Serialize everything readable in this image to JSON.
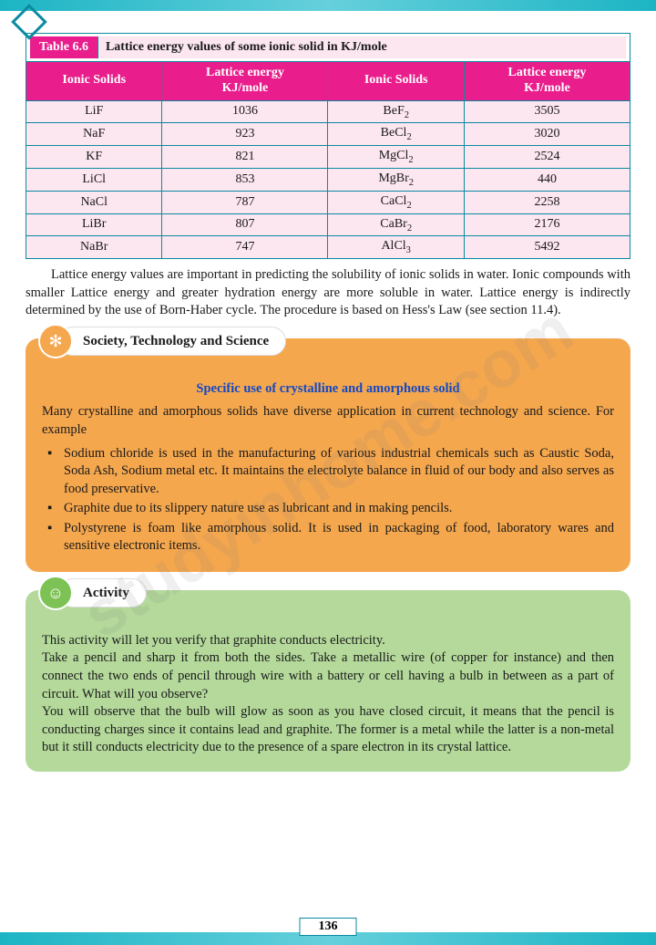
{
  "watermark": "studyinhome.com",
  "page_number": "136",
  "table": {
    "number": "Table 6.6",
    "caption": "Lattice energy values of some ionic solid in KJ/mole",
    "headers": {
      "0": "Ionic Solids",
      "1a": "Lattice energy",
      "1b": "KJ/mole",
      "2": "Ionic Solids",
      "3a": "Lattice energy",
      "3b": "KJ/mole"
    },
    "rows": [
      [
        "LiF",
        "1036",
        "BeF2",
        "3505"
      ],
      [
        "NaF",
        "923",
        "BeCl2",
        "3020"
      ],
      [
        "KF",
        "821",
        "MgCl2",
        "2524"
      ],
      [
        "LiCl",
        "853",
        "MgBr2",
        "440"
      ],
      [
        "NaCl",
        "787",
        "CaCl2",
        "2258"
      ],
      [
        "LiBr",
        "807",
        "CaBr2",
        "2176"
      ],
      [
        "NaBr",
        "747",
        "AlCl3",
        "5492"
      ]
    ],
    "header_bg": "#e91e8c",
    "header_fg": "#ffffff",
    "cell_bg": "#fce6ef",
    "border_color": "#0a8aa0"
  },
  "paragraph": "Lattice energy values are important in predicting the solubility of ionic solids in water. Ionic compounds with smaller Lattice energy and greater hydration energy are more soluble in water. Lattice energy is indirectly determined by the use of Born-Haber cycle. The procedure is based on Hess's Law (see section 11.4).",
  "society": {
    "tab": "Society, Technology and Science",
    "subhead": "Specific use of crystalline and amorphous solid",
    "intro": "Many crystalline and amorphous solids have diverse application in current technology and science. For example",
    "bullets": [
      "Sodium chloride is used in the manufacturing of various industrial chemicals such as Caustic Soda, Soda Ash, Sodium metal etc. It maintains the electrolyte balance in fluid of our body and also serves as food preservative.",
      "Graphite due to its slippery nature use as lubricant and in making pencils.",
      "Polystyrene is foam like amorphous solid. It is used in packaging of food, laboratory wares and sensitive electronic items."
    ],
    "bg": "#f5a74e",
    "subhead_color": "#1249c4"
  },
  "activity": {
    "tab": "Activity",
    "p1": "This activity will let you verify that graphite conducts electricity.",
    "p2": "Take a pencil and sharp it from both the sides. Take a metallic wire (of copper for instance) and then connect the two ends of pencil through wire with a battery or cell having a bulb in between as a part of circuit. What will you observe?",
    "p3": "You will observe that the bulb will glow as soon as you have closed circuit, it means that the pencil is conducting charges since it contains lead and graphite. The former is a metal while the latter is a non-metal but it still conducts electricity due to the presence of a spare electron in its crystal lattice.",
    "bg": "#b4d99b"
  },
  "colors": {
    "border_accent": "#1cb4c4",
    "text": "#1a1a1a"
  },
  "fonts": {
    "body": "Georgia",
    "size_body": 14.5,
    "size_table": 14
  }
}
